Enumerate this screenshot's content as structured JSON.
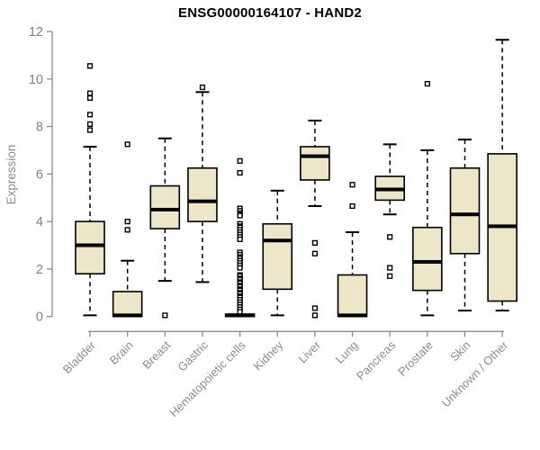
{
  "header": {
    "title": "ENSG00000164107 - HAND2"
  },
  "chart_data": {
    "type": "boxplot",
    "title": "ENSG00000164107 - HAND2",
    "xlabel": "",
    "ylabel": "Expression",
    "ylim": [
      0,
      12
    ],
    "yticks": [
      0,
      2,
      4,
      6,
      8,
      10,
      12
    ],
    "grid": false,
    "legend": "none",
    "categories": [
      "Bladder",
      "Brain",
      "Breast",
      "Gastric",
      "Hematopoietic cells",
      "Kidney",
      "Liver",
      "Lung",
      "Pancreas",
      "Prostate",
      "Skin",
      "Unknown / Other"
    ],
    "series": [
      {
        "name": "Bladder",
        "low": 0.05,
        "q1": 1.8,
        "median": 3.0,
        "q3": 4.0,
        "high": 7.15,
        "outliers": [
          7.85,
          8.1,
          8.5,
          9.2,
          9.4,
          10.55
        ]
      },
      {
        "name": "Brain",
        "low": 0.0,
        "q1": 0.0,
        "median": 0.05,
        "q3": 1.05,
        "high": 2.35,
        "outliers": [
          3.65,
          4.0,
          7.25
        ]
      },
      {
        "name": "Breast",
        "low": 1.5,
        "q1": 3.7,
        "median": 4.5,
        "q3": 5.5,
        "high": 7.5,
        "outliers": [
          0.05
        ]
      },
      {
        "name": "Gastric",
        "low": 1.45,
        "q1": 4.0,
        "median": 4.85,
        "q3": 6.25,
        "high": 9.45,
        "outliers": [
          9.65
        ]
      },
      {
        "name": "Hematopoietic cells",
        "low": 0.0,
        "q1": 0.0,
        "median": 0.05,
        "q3": 0.1,
        "high": 0.1,
        "outliers": [
          6.55,
          6.05,
          4.55,
          4.45,
          4.35,
          4.3,
          4.25,
          3.9,
          3.8,
          3.75,
          3.65,
          3.55,
          3.45,
          3.35,
          3.25,
          2.7,
          2.6,
          2.5,
          2.45,
          2.35,
          2.25,
          2.15,
          2.05,
          1.75,
          1.7,
          1.6,
          1.55,
          1.45,
          1.4,
          1.3,
          1.25,
          1.15,
          1.1,
          1.0,
          0.95,
          0.85,
          0.8,
          0.7,
          0.6,
          0.5,
          0.4,
          0.3,
          0.2
        ]
      },
      {
        "name": "Kidney",
        "low": 0.05,
        "q1": 1.15,
        "median": 3.2,
        "q3": 3.9,
        "high": 5.3,
        "outliers": []
      },
      {
        "name": "Liver",
        "low": 4.65,
        "q1": 5.75,
        "median": 6.75,
        "q3": 7.15,
        "high": 8.25,
        "outliers": [
          3.1,
          2.65,
          0.35,
          0.05
        ]
      },
      {
        "name": "Lung",
        "low": 0.0,
        "q1": 0.0,
        "median": 0.05,
        "q3": 1.75,
        "high": 3.55,
        "outliers": [
          4.65,
          5.55
        ]
      },
      {
        "name": "Pancreas",
        "low": 4.3,
        "q1": 4.9,
        "median": 5.35,
        "q3": 5.9,
        "high": 7.25,
        "outliers": [
          3.35,
          2.05,
          1.7
        ]
      },
      {
        "name": "Prostate",
        "low": 0.05,
        "q1": 1.1,
        "median": 2.3,
        "q3": 3.75,
        "high": 7.0,
        "outliers": [
          9.8
        ]
      },
      {
        "name": "Skin",
        "low": 0.25,
        "q1": 2.65,
        "median": 4.3,
        "q3": 6.25,
        "high": 7.45,
        "outliers": []
      },
      {
        "name": "Unknown / Other",
        "low": 0.25,
        "q1": 0.65,
        "median": 3.8,
        "q3": 6.85,
        "high": 11.65,
        "outliers": []
      }
    ],
    "colors": {
      "box_fill": "#ede6c8",
      "box_border": "#000000",
      "median": "#000000",
      "whisker": "#000000",
      "outlier": "#000000",
      "axis": "#8c8c8c",
      "tick_label": "#808080",
      "category_label": "#8c8c8c",
      "title": "#000000",
      "background": "#ffffff"
    }
  }
}
